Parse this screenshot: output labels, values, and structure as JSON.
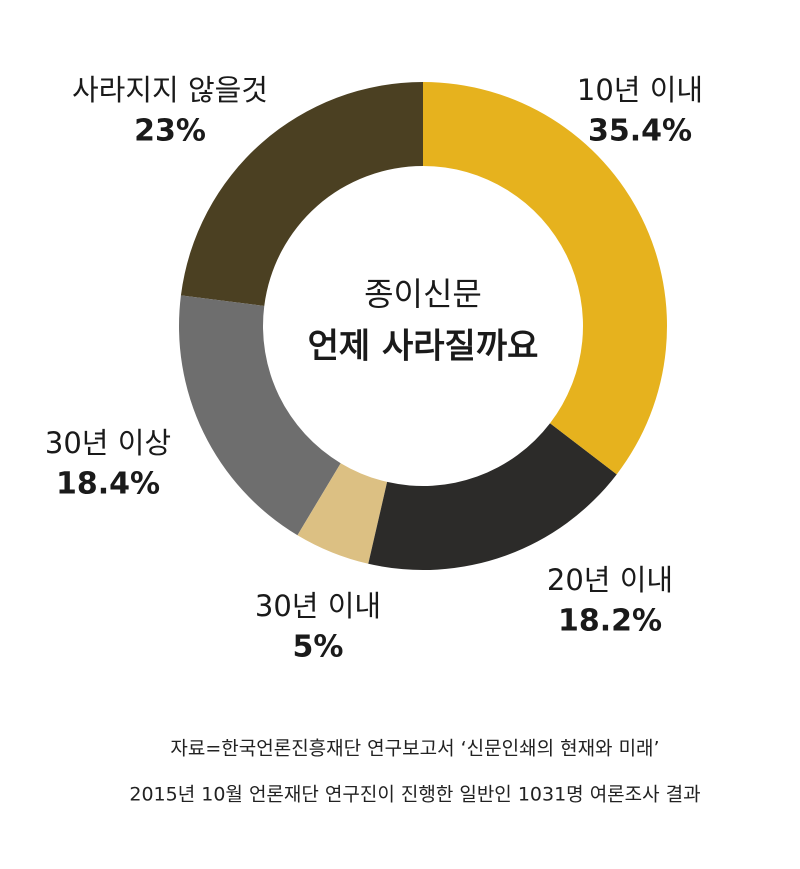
{
  "chart_data": {
    "type": "donut",
    "title": "종이신문",
    "subtitle": "언제 사라질까요",
    "categories": [
      "10년 이내",
      "20년 이내",
      "30년 이내",
      "30년 이상",
      "사라지지 않을것"
    ],
    "values": [
      35.4,
      18.2,
      5,
      18.4,
      23
    ],
    "value_labels": [
      "35.4%",
      "18.2%",
      "5%",
      "18.4%",
      "23%"
    ],
    "colors": [
      "#e6b21e",
      "#2c2b29",
      "#dcc083",
      "#6e6e6e",
      "#4b4022"
    ],
    "notes": [
      "자료=한국언론진흥재단 연구보고서 ‘신문인쇄의 현재와 미래’",
      "2015년 10월 언론재단 연구진이 진행한 일반인 1031명 여론조사 결과"
    ]
  }
}
